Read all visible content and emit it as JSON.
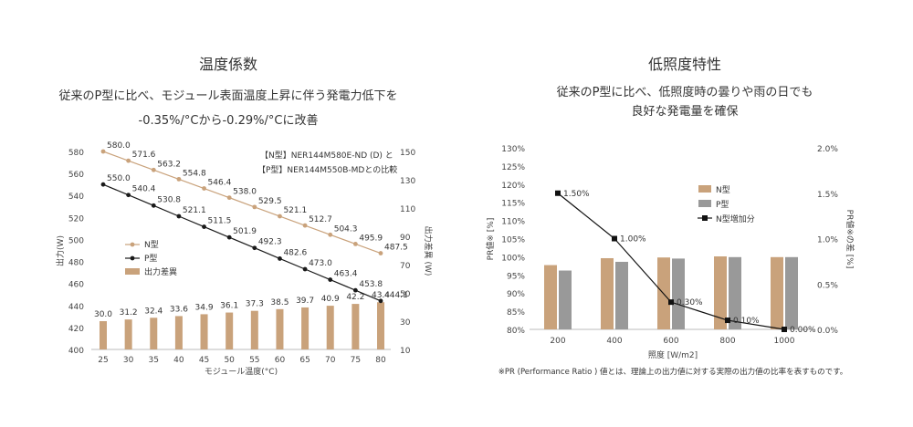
{
  "colors": {
    "n_type": "#c9a27b",
    "p_type": "#1a1a1a",
    "diff": "#c9a27b",
    "bar_n": "#c9a27b",
    "bar_p": "#999999",
    "axis": "#cccccc"
  },
  "left": {
    "title": "温度係数",
    "subtitle1": "従来のP型に比べ、モジュール表面温度上昇に伴う発電力低下を",
    "subtitle2": "-0.35%/°Cから-0.29%/°Cに改善",
    "note1": "【N型】NER144M580E-ND (D) と",
    "note2": "【P型】NER144M550B-MDとの比較",
    "chart_data": {
      "type": "line",
      "x": [
        25,
        30,
        35,
        40,
        45,
        50,
        55,
        60,
        65,
        70,
        75,
        80
      ],
      "xlabel": "モジュール温度(°C)",
      "ylabel": "出力(W)",
      "y2label": "出力差異 (W)",
      "ylim": [
        400,
        580
      ],
      "y2lim": [
        10,
        150
      ],
      "yticks": [
        400,
        420,
        440,
        460,
        480,
        500,
        520,
        540,
        560,
        580
      ],
      "y2ticks": [
        10,
        30,
        50,
        70,
        90,
        110,
        130,
        150
      ],
      "series": [
        {
          "name": "N型",
          "values": [
            580.0,
            571.6,
            563.2,
            554.8,
            546.4,
            538.0,
            529.5,
            521.1,
            512.7,
            504.3,
            495.9,
            487.5
          ],
          "labels": [
            "580.0",
            "571.6",
            "563.2",
            "554.8",
            "546.4",
            "538.0",
            "529.5",
            "521.1",
            "512.7",
            "504.3",
            "495.9",
            "487.5"
          ]
        },
        {
          "name": "P型",
          "values": [
            550.0,
            540.4,
            530.8,
            521.1,
            511.5,
            501.9,
            492.3,
            482.6,
            473.0,
            463.4,
            453.8,
            444.1
          ],
          "labels": [
            "550.0",
            "540.4",
            "530.8",
            "521.1",
            "511.5",
            "501.9",
            "492.3",
            "482.6",
            "473.0",
            "463.4",
            "453.8",
            "444.1"
          ]
        },
        {
          "name": "出力差異",
          "type": "bar",
          "axis": "y2",
          "values": [
            30.0,
            31.2,
            32.4,
            33.6,
            34.9,
            36.1,
            37.3,
            38.5,
            39.7,
            40.9,
            42.2,
            43.4
          ],
          "labels": [
            "30.0",
            "31.2",
            "32.4",
            "33.6",
            "34.9",
            "36.1",
            "37.3",
            "38.5",
            "39.7",
            "40.9",
            "42.2",
            "43.4"
          ]
        }
      ],
      "legend": "left"
    }
  },
  "right": {
    "title": "低照度特性",
    "subtitle1": "従来のP型に比べ、低照度時の曇りや雨の日でも",
    "subtitle2": "良好な発電量を確保",
    "footnote": "※PR (Performance Ratio ) 値とは、理論上の出力値に対する実際の出力値の比率を表すものです。",
    "chart_data": {
      "type": "bar",
      "categories": [
        "200",
        "400",
        "600",
        "800",
        "1000"
      ],
      "xlabel": "照度 [W/m2]",
      "ylabel": "PR値※ [%]",
      "y2label": "PR値※の差 [%]",
      "ylim": [
        80,
        130
      ],
      "yticks": [
        "80%",
        "85%",
        "90%",
        "95%",
        "100%",
        "105%",
        "110%",
        "115%",
        "120%",
        "125%",
        "130%"
      ],
      "y2lim": [
        0,
        2
      ],
      "y2ticks": [
        "0.0%",
        "0.5%",
        "1.0%",
        "1.5%",
        "2.0%"
      ],
      "series": [
        {
          "name": "N型",
          "values": [
            97.7,
            99.6,
            99.8,
            100.1,
            99.9
          ]
        },
        {
          "name": "P型",
          "values": [
            96.2,
            98.6,
            99.5,
            99.9,
            99.9
          ]
        },
        {
          "name": "N型増加分",
          "type": "line",
          "axis": "y2",
          "values": [
            1.5,
            1.0,
            0.3,
            0.1,
            0.0
          ],
          "labels": [
            "1.50%",
            "1.00%",
            "0.30%",
            "0.10%",
            "0.00%"
          ]
        }
      ],
      "legend": "top-right"
    }
  }
}
